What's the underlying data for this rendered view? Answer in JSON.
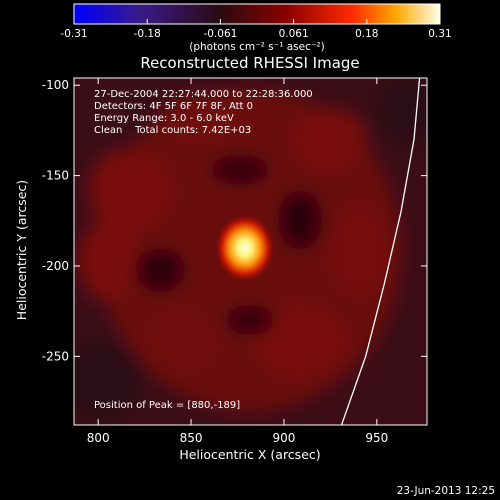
{
  "colorbar": {
    "ticks": [
      "-0.31",
      "-0.18",
      "-0.061",
      "0.061",
      "0.18",
      "0.31"
    ],
    "unit_label": "(photons cm⁻² s⁻¹ asec⁻²)",
    "colors": [
      "#0000ff",
      "#3a1a8a",
      "#2a0a10",
      "#8a0000",
      "#ff2a00",
      "#ffa800",
      "#ffffe8"
    ]
  },
  "chart_data": {
    "type": "heatmap",
    "title": "Reconstructed RHESSI Image",
    "xlabel": "Heliocentric X (arcsec)",
    "ylabel": "Heliocentric Y (arcsec)",
    "xlim": [
      787,
      977
    ],
    "ylim": [
      -288,
      -96
    ],
    "xticks": [
      800,
      850,
      900,
      950
    ],
    "yticks": [
      -100,
      -150,
      -200,
      -250
    ],
    "peak": [
      880,
      -189
    ],
    "limb_curve": [
      [
        973,
        -96
      ],
      [
        970,
        -130
      ],
      [
        963,
        -170
      ],
      [
        954,
        -210
      ],
      [
        944,
        -250
      ],
      [
        931,
        -288
      ]
    ],
    "annotations": [
      "27-Dec-2004 22:27:44.000 to 22:28:36.000",
      "Detectors: 4F 5F 6F 7F 8F, Att 0",
      "Energy Range: 3.0 - 6.0 keV",
      "Clean    Total counts: 7.42E+03"
    ],
    "peak_label": "Position of Peak = [880,-189]"
  },
  "footer": {
    "timestamp": "23-Jun-2013 12:25"
  }
}
